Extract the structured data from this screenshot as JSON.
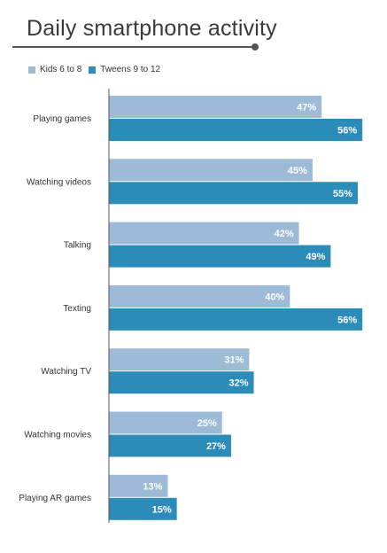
{
  "title": "Daily smartphone activity",
  "legend": [
    {
      "label": "Kids 6 to 8",
      "color": "#9dbbd7"
    },
    {
      "label": "Tweens 9 to 12",
      "color": "#2b8cba"
    }
  ],
  "chart_data": {
    "type": "bar",
    "orientation": "horizontal",
    "title": "Daily smartphone activity",
    "categories": [
      "Playing games",
      "Watching videos",
      "Talking",
      "Texting",
      "Watching TV",
      "Watching movies",
      "Playing AR games"
    ],
    "series": [
      {
        "name": "Kids 6 to 8",
        "color": "#9dbbd7",
        "values": [
          47,
          45,
          42,
          40,
          31,
          25,
          13
        ]
      },
      {
        "name": "Tweens 9 to 12",
        "color": "#2b8cba",
        "values": [
          56,
          55,
          49,
          56,
          32,
          27,
          15
        ]
      }
    ],
    "value_suffix": "%",
    "xlim": [
      0,
      60
    ],
    "grid": false,
    "legend_position": "top-left"
  }
}
